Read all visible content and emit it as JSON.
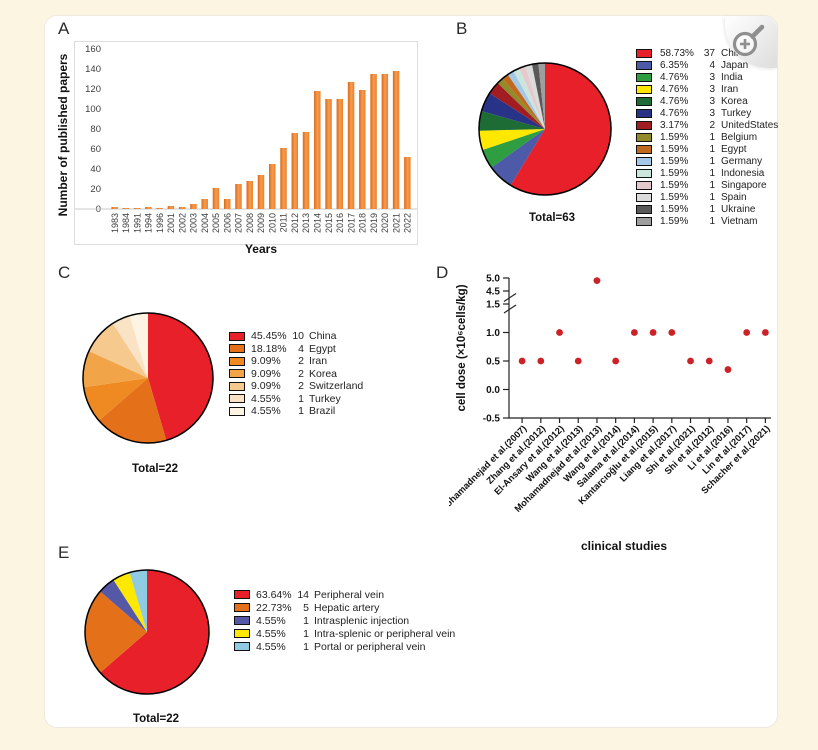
{
  "letters": {
    "a": "A",
    "b": "B",
    "c": "C",
    "d": "D",
    "e": "E"
  },
  "colors": {
    "background": "#fcf5e2",
    "panel": "#ffffff",
    "bar_gradient": [
      "#d96a1a",
      "#f79b4f",
      "#e8832f"
    ],
    "scatter_point": "#cc2127",
    "pie_outline": "#000000",
    "axis": "#222222"
  },
  "zoom_button": {
    "icon": "magnifier-plus-icon"
  },
  "chart_data": [
    {
      "id": "A",
      "type": "bar",
      "xlabel": "Years",
      "ylabel": "Number of published papers",
      "ylim": [
        0,
        160
      ],
      "yticks": [
        0,
        20,
        40,
        60,
        80,
        100,
        120,
        140,
        160
      ],
      "categories": [
        "1983",
        "1984",
        "1991",
        "1994",
        "1996",
        "2001",
        "2002",
        "2003",
        "2004",
        "2005",
        "2006",
        "2007",
        "2008",
        "2009",
        "2010",
        "2011",
        "2012",
        "2013",
        "2014",
        "2015",
        "2016",
        "2017",
        "2018",
        "2019",
        "2020",
        "2021",
        "2022"
      ],
      "values": [
        2,
        1,
        1,
        2,
        1,
        3,
        2,
        5,
        10,
        21,
        10,
        25,
        28,
        34,
        45,
        61,
        76,
        77,
        118,
        110,
        110,
        127,
        119,
        135,
        135,
        138,
        52
      ]
    },
    {
      "id": "B",
      "type": "pie",
      "total_label": "Total=63",
      "legend_position": "right",
      "slices": [
        {
          "percent": 58.73,
          "percent_label": "58.73%",
          "count": "37",
          "name": "China",
          "color": "#e8202a"
        },
        {
          "percent": 6.35,
          "percent_label": "6.35%",
          "count": "4",
          "name": "Japan",
          "color": "#4c5aa7"
        },
        {
          "percent": 4.76,
          "percent_label": "4.76%",
          "count": "3",
          "name": "India",
          "color": "#2f9e41"
        },
        {
          "percent": 4.76,
          "percent_label": "4.76%",
          "count": "3",
          "name": "Iran",
          "color": "#ffe800"
        },
        {
          "percent": 4.76,
          "percent_label": "4.76%",
          "count": "3",
          "name": "Korea",
          "color": "#1d6b35"
        },
        {
          "percent": 4.76,
          "percent_label": "4.76%",
          "count": "3",
          "name": "Turkey",
          "color": "#283287"
        },
        {
          "percent": 3.17,
          "percent_label": "3.17%",
          "count": "2",
          "name": "UnitedStates",
          "color": "#a21d22"
        },
        {
          "percent": 1.59,
          "percent_label": "1.59%",
          "count": "1",
          "name": "Belgium",
          "color": "#918b2b"
        },
        {
          "percent": 1.59,
          "percent_label": "1.59%",
          "count": "1",
          "name": "Egypt",
          "color": "#bf6a1f"
        },
        {
          "percent": 1.59,
          "percent_label": "1.59%",
          "count": "1",
          "name": "Germany",
          "color": "#a6c8e8"
        },
        {
          "percent": 1.59,
          "percent_label": "1.59%",
          "count": "1",
          "name": "Indonesia",
          "color": "#cbe6dc"
        },
        {
          "percent": 1.59,
          "percent_label": "1.59%",
          "count": "1",
          "name": "Singapore",
          "color": "#e5cacd"
        },
        {
          "percent": 1.59,
          "percent_label": "1.59%",
          "count": "1",
          "name": "Spain",
          "color": "#dcdcdc"
        },
        {
          "percent": 1.59,
          "percent_label": "1.59%",
          "count": "1",
          "name": "Ukraine",
          "color": "#595959"
        },
        {
          "percent": 1.59,
          "percent_label": "1.59%",
          "count": "1",
          "name": "Vietnam",
          "color": "#9e9e9e"
        }
      ]
    },
    {
      "id": "C",
      "type": "pie",
      "total_label": "Total=22",
      "legend_position": "right",
      "slices": [
        {
          "percent": 45.45,
          "percent_label": "45.45%",
          "count": "10",
          "name": "China",
          "color": "#e8202a"
        },
        {
          "percent": 18.18,
          "percent_label": "18.18%",
          "count": "4",
          "name": "Egypt",
          "color": "#e4711a"
        },
        {
          "percent": 9.09,
          "percent_label": "9.09%",
          "count": "2",
          "name": "Iran",
          "color": "#ee8a21"
        },
        {
          "percent": 9.09,
          "percent_label": "9.09%",
          "count": "2",
          "name": "Korea",
          "color": "#f2a449"
        },
        {
          "percent": 9.09,
          "percent_label": "9.09%",
          "count": "2",
          "name": "Switzerland",
          "color": "#f6c98f"
        },
        {
          "percent": 4.55,
          "percent_label": "4.55%",
          "count": "1",
          "name": "Turkey",
          "color": "#fae3c4"
        },
        {
          "percent": 4.55,
          "percent_label": "4.55%",
          "count": "1",
          "name": "Brazil",
          "color": "#fdf4e4"
        }
      ]
    },
    {
      "id": "D",
      "type": "scatter",
      "xlabel": "clinical studies",
      "ylabel": "cell dose (×10⁶cells/kg)",
      "yticks": [
        "5.0",
        "4.5",
        "1.5",
        "1.0",
        "0.5",
        "0.0",
        "-0.5"
      ],
      "axis_break": "y-axis break between 1.5 and 4.5",
      "x": [
        "Mohamadnejad et al.(2007)",
        "Zhang et al.(2012)",
        "El-Ansary et al.(2012)",
        "Wang et al.(2013)",
        "Mohamadnejad et al.(2013)",
        "Wang et al.(2014)",
        "Salama et al.(2014)",
        "Kantarcıoğlu et al.(2015)",
        "Liang et al.(2017)",
        "Shi et al.(2021)",
        "Shi et al.(2012)",
        "Li et al.(2016)",
        "Lin et al.(2017)",
        "Schacher et al.(2021)"
      ],
      "y": [
        0.5,
        0.5,
        1.0,
        0.5,
        4.9,
        0.5,
        1.0,
        1.0,
        1.0,
        0.5,
        0.5,
        0.35,
        1.0,
        1.0
      ]
    },
    {
      "id": "E",
      "type": "pie",
      "total_label": "Total=22",
      "legend_position": "right",
      "slices": [
        {
          "percent": 63.64,
          "percent_label": "63.64%",
          "count": "14",
          "name": "Peripheral vein",
          "color": "#e8202a"
        },
        {
          "percent": 22.73,
          "percent_label": "22.73%",
          "count": "5",
          "name": "Hepatic artery",
          "color": "#e4711a"
        },
        {
          "percent": 4.55,
          "percent_label": "4.55%",
          "count": "1",
          "name": "Intrasplenic injection",
          "color": "#5558a5"
        },
        {
          "percent": 4.55,
          "percent_label": "4.55%",
          "count": "1",
          "name": "Intra-splenic or peripheral vein",
          "color": "#ffe800"
        },
        {
          "percent": 4.55,
          "percent_label": "4.55%",
          "count": "1",
          "name": "Portal or peripheral vein",
          "color": "#8fcbe2"
        }
      ]
    }
  ]
}
